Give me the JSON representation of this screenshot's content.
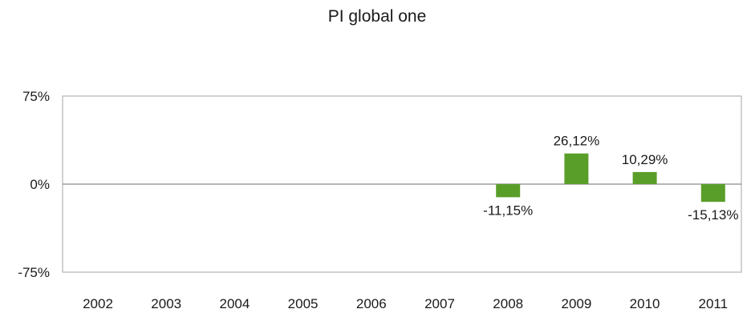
{
  "chart_data": {
    "type": "bar",
    "title": "PI global one",
    "categories": [
      "2002",
      "2003",
      "2004",
      "2005",
      "2006",
      "2007",
      "2008",
      "2009",
      "2010",
      "2011"
    ],
    "values": [
      null,
      null,
      null,
      null,
      null,
      null,
      -11.15,
      26.12,
      10.29,
      -15.13
    ],
    "data_labels": [
      "",
      "",
      "",
      "",
      "",
      "",
      "-11,15%",
      "26,12%",
      "10,29%",
      "-15,13%"
    ],
    "y_ticks": [
      "75%",
      "0%",
      "-75%"
    ],
    "ylim": [
      -75,
      75
    ],
    "grid": false,
    "bar_color": "#5a9e2a"
  }
}
